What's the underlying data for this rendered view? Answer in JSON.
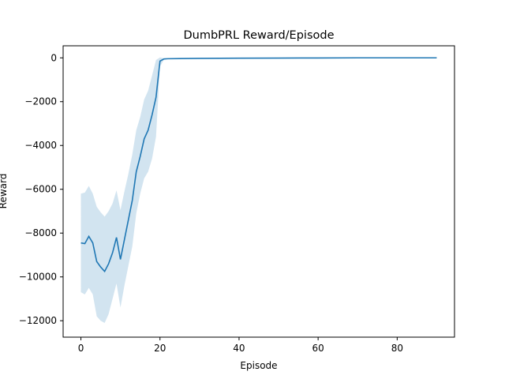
{
  "chart_data": {
    "type": "line",
    "title": "DumbPRL Reward/Episode",
    "xlabel": "Episode",
    "ylabel": "Reward",
    "xlim": [
      -4.5,
      94.5
    ],
    "ylim": [
      -12750,
      550
    ],
    "xticks": [
      0,
      20,
      40,
      60,
      80
    ],
    "yticks": [
      -12000,
      -10000,
      -8000,
      -6000,
      -4000,
      -2000,
      0
    ],
    "grid": false,
    "colors": {
      "line": "#1f77b4",
      "band": "#1f77b4"
    },
    "series": [
      {
        "x": [
          0,
          1,
          2,
          3,
          4,
          5,
          6,
          7,
          8,
          9,
          10,
          11,
          12,
          13,
          14,
          15,
          16,
          17,
          18,
          19,
          20,
          21,
          22,
          25,
          30,
          40,
          50,
          60,
          70,
          80,
          90
        ],
        "y": [
          -8450,
          -8480,
          -8150,
          -8450,
          -9300,
          -9550,
          -9750,
          -9400,
          -8900,
          -8200,
          -9200,
          -8300,
          -7400,
          -6500,
          -5200,
          -4500,
          -3700,
          -3300,
          -2600,
          -1800,
          -150,
          -50,
          -40,
          -35,
          -25,
          -15,
          -10,
          -5,
          0,
          0,
          0
        ],
        "lower": [
          -10700,
          -10800,
          -10500,
          -10800,
          -11800,
          -12000,
          -12100,
          -11700,
          -11000,
          -10300,
          -11400,
          -10400,
          -9500,
          -8600,
          -7100,
          -6200,
          -5500,
          -5200,
          -4600,
          -3600,
          -400,
          -80,
          -60,
          -50,
          -40,
          -25,
          -15,
          -8,
          -3,
          -3,
          -3
        ],
        "upper": [
          -6200,
          -6150,
          -5850,
          -6200,
          -6800,
          -7050,
          -7250,
          -7000,
          -6650,
          -6050,
          -6950,
          -6100,
          -5300,
          -4400,
          -3300,
          -2700,
          -1900,
          -1500,
          -800,
          -100,
          20,
          -20,
          -20,
          -20,
          -10,
          -5,
          -5,
          -2,
          3,
          3,
          3
        ]
      }
    ]
  }
}
